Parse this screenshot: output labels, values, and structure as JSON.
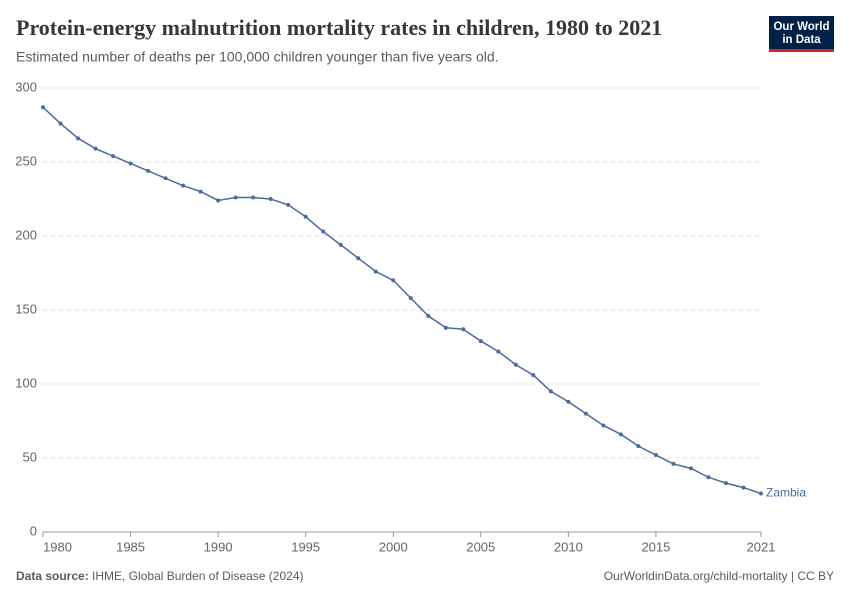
{
  "header": {
    "title": "Protein-energy malnutrition mortality rates in children, 1980 to 2021",
    "subtitle": "Estimated number of deaths per 100,000 children younger than five years old.",
    "logo": [
      "Our World",
      "in Data"
    ]
  },
  "chart_data": {
    "type": "line",
    "x": [
      1980,
      1981,
      1982,
      1983,
      1984,
      1985,
      1986,
      1987,
      1988,
      1989,
      1990,
      1991,
      1992,
      1993,
      1994,
      1995,
      1996,
      1997,
      1998,
      1999,
      2000,
      2001,
      2002,
      2003,
      2004,
      2005,
      2006,
      2007,
      2008,
      2009,
      2010,
      2011,
      2012,
      2013,
      2014,
      2015,
      2016,
      2017,
      2018,
      2019,
      2020,
      2021
    ],
    "series": [
      {
        "name": "Zambia",
        "color": "#4c6a9c",
        "values": [
          287,
          276,
          266,
          259,
          254,
          249,
          244,
          239,
          234,
          230,
          224,
          226,
          226,
          225,
          221,
          213,
          203,
          194,
          185,
          176,
          170,
          158,
          146,
          138,
          137,
          129,
          122,
          113,
          106,
          95,
          88,
          80,
          72,
          66,
          58,
          52,
          46,
          43,
          37,
          33,
          30,
          26
        ]
      }
    ],
    "xlim": [
      1980,
      2021
    ],
    "xticks": [
      1980,
      1985,
      1990,
      1995,
      2000,
      2005,
      2010,
      2015,
      2021
    ],
    "ylim": [
      0,
      300
    ],
    "yticks": [
      0,
      50,
      100,
      150,
      200,
      250,
      300
    ],
    "grid": true
  },
  "footer": {
    "source_label": "Data source:",
    "source": "IHME, Global Burden of Disease (2024)",
    "url": "OurWorldinData.org/child-mortality | CC BY"
  }
}
